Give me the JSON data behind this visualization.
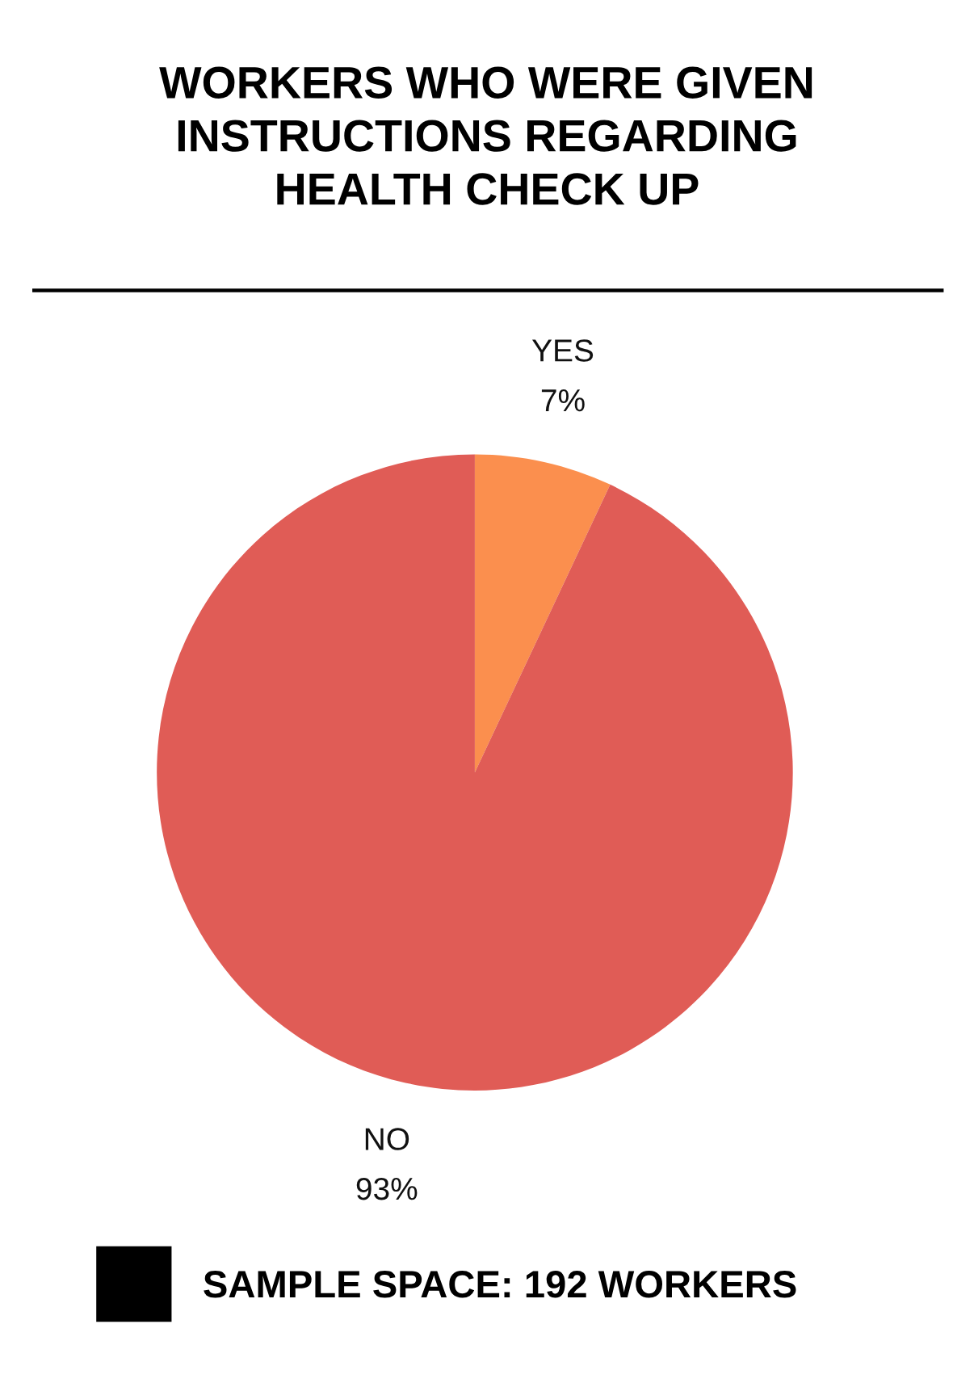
{
  "chart_data": {
    "type": "pie",
    "title": "WORKERS WHO WERE GIVEN\nINSTRUCTIONS REGARDING\nHEALTH CHECK UP",
    "categories": [
      "YES",
      "NO"
    ],
    "values": [
      7,
      93
    ],
    "value_labels": [
      "7%",
      "93%"
    ],
    "colors": [
      "#fb8f4e",
      "#e05c56"
    ],
    "legend": false,
    "annotations": [
      "SAMPLE SPACE: 192 WORKERS"
    ]
  }
}
